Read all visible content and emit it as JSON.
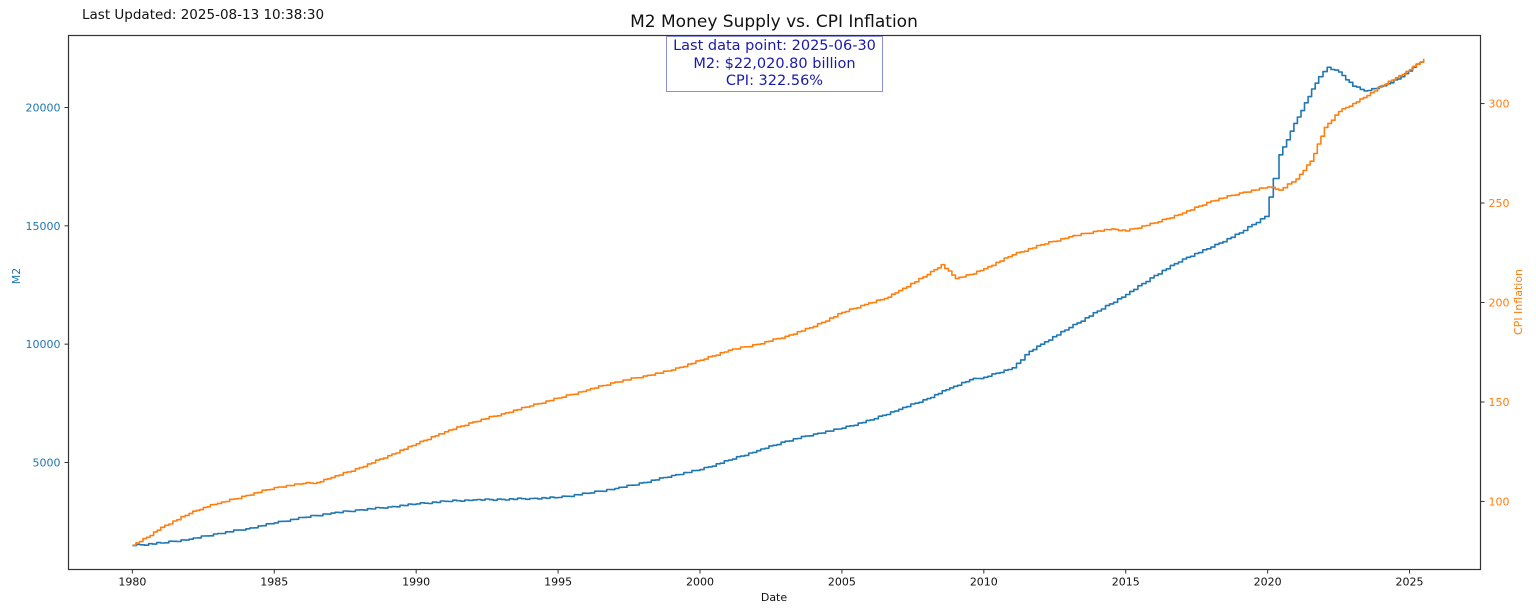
{
  "header": {
    "last_updated": "Last Updated: 2025-08-13 10:38:30"
  },
  "annotation": {
    "line1": "Last data point: 2025-06-30",
    "line2": "M2: $22,020.80 billion",
    "line3": "CPI: 322.56%"
  },
  "chart_data": {
    "type": "line",
    "title": "M2 Money Supply vs. CPI Inflation",
    "xlabel": "Date",
    "ylabel_left": "M2",
    "ylabel_right": "CPI Inflation",
    "xlim": [
      1977.75,
      2027.5
    ],
    "ylim_left": [
      479,
      23042
    ],
    "ylim_right": [
      65.8,
      334.2
    ],
    "x_ticks": [
      1980,
      1985,
      1990,
      1995,
      2000,
      2005,
      2010,
      2015,
      2020,
      2025
    ],
    "y_ticks_left": [
      5000,
      10000,
      15000,
      20000
    ],
    "y_ticks_right": [
      100,
      150,
      200,
      250,
      300
    ],
    "grid": false,
    "colors": {
      "m2": "#1f77b4",
      "cpi": "#ff7f0e",
      "annotation_text": "#1a1aa8",
      "annotation_border": "#8b8fd8"
    },
    "series": [
      {
        "name": "M2",
        "axis": "left",
        "x": [
          1980.0,
          1981.0,
          1982.0,
          1983.0,
          1984.0,
          1985.0,
          1986.0,
          1987.0,
          1988.0,
          1989.0,
          1990.0,
          1991.0,
          1992.0,
          1993.0,
          1994.0,
          1995.0,
          1996.0,
          1997.0,
          1998.0,
          1999.0,
          2000.0,
          2001.0,
          2002.0,
          2003.0,
          2004.0,
          2005.0,
          2006.0,
          2007.0,
          2008.0,
          2008.8,
          2009.5,
          2010.0,
          2011.0,
          2011.6,
          2012.0,
          2013.0,
          2014.0,
          2015.0,
          2016.0,
          2017.0,
          2018.0,
          2019.0,
          2019.9,
          2020.2,
          2020.4,
          2020.8,
          2021.3,
          2021.8,
          2022.1,
          2022.5,
          2023.0,
          2023.4,
          2023.8,
          2024.2,
          2024.7,
          2025.1,
          2025.5
        ],
        "values": [
          1490,
          1600,
          1760,
          2000,
          2200,
          2450,
          2680,
          2860,
          3000,
          3120,
          3250,
          3360,
          3420,
          3440,
          3480,
          3520,
          3700,
          3900,
          4150,
          4450,
          4700,
          5100,
          5500,
          5900,
          6200,
          6450,
          6800,
          7250,
          7700,
          8150,
          8500,
          8600,
          9000,
          9700,
          10000,
          10700,
          11400,
          12100,
          12900,
          13600,
          14100,
          14700,
          15400,
          17000,
          18000,
          19000,
          20200,
          21300,
          21700,
          21500,
          20900,
          20700,
          20800,
          21000,
          21300,
          21700,
          22020.8
        ]
      },
      {
        "name": "CPI Inflation",
        "axis": "right",
        "x": [
          1980.0,
          1980.5,
          1981.0,
          1982.0,
          1982.5,
          1983.0,
          1984.0,
          1985.0,
          1986.0,
          1986.5,
          1987.0,
          1988.0,
          1989.0,
          1990.0,
          1990.8,
          1991.0,
          1992.0,
          1993.0,
          1994.0,
          1995.0,
          1996.0,
          1997.0,
          1998.0,
          1999.0,
          2000.0,
          2001.0,
          2002.0,
          2003.0,
          2004.0,
          2005.0,
          2005.8,
          2006.5,
          2007.0,
          2008.0,
          2008.5,
          2009.0,
          2009.5,
          2010.0,
          2011.0,
          2012.0,
          2013.0,
          2014.0,
          2014.5,
          2015.0,
          2016.0,
          2017.0,
          2018.0,
          2019.0,
          2020.0,
          2020.4,
          2021.0,
          2021.5,
          2022.0,
          2022.5,
          2023.0,
          2023.5,
          2024.0,
          2024.5,
          2025.0,
          2025.5
        ],
        "values": [
          78,
          82,
          87,
          94,
          97,
          99,
          103,
          107,
          109,
          109.5,
          112,
          117,
          123,
          129,
          134,
          135,
          140,
          144,
          148,
          152,
          156,
          160,
          163,
          166,
          171,
          176,
          179,
          183,
          188,
          195,
          199,
          202,
          206,
          214,
          219,
          212,
          214,
          217,
          224,
          229,
          233,
          236,
          237,
          236,
          240,
          245,
          251,
          255,
          258,
          256.5,
          262,
          271,
          288,
          296,
          300,
          304,
          309,
          313,
          317,
          322.56
        ]
      }
    ]
  }
}
